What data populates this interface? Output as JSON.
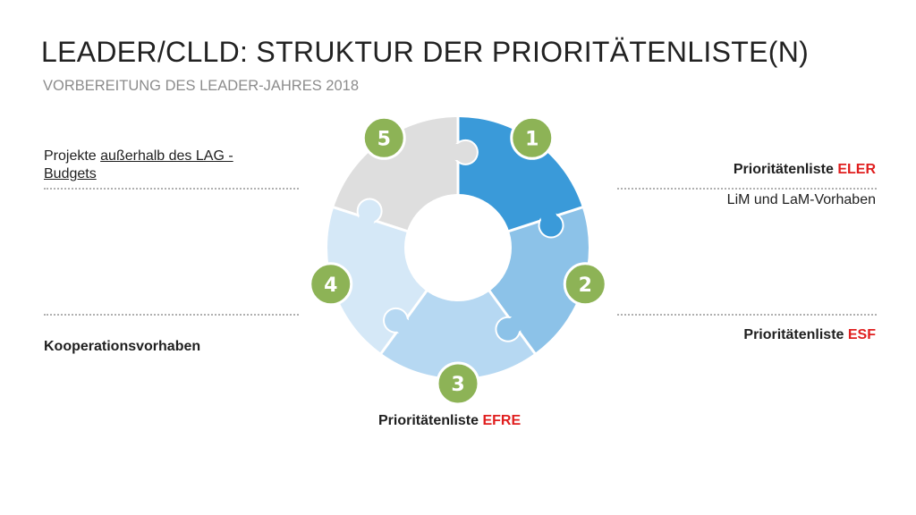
{
  "header": {
    "title": "LEADER/CLLD: STRUKTUR DER PRIORITÄTENLISTE(N)",
    "subtitle": "VORBEREITUNG DES LEADER-JAHRES 2018"
  },
  "labels": {
    "p5_line1_prefix": "Projekte ",
    "p5_line1_link": "außerhalb des LAG -",
    "p5_line2": "Budgets",
    "p1_prefix": "Prioritätenliste ",
    "p1_accent": "ELER",
    "p1_note": "LiM und LaM-Vorhaben",
    "p2_prefix": "Prioritätenliste ",
    "p2_accent": "ESF",
    "p3_prefix": "Prioritätenliste ",
    "p3_accent": "EFRE",
    "p4": "Kooperationsvorhaben"
  },
  "puzzle": {
    "pieces": [
      {
        "number": "1",
        "color": "#3a9ad9"
      },
      {
        "number": "2",
        "color": "#8cc2e8"
      },
      {
        "number": "3",
        "color": "#b6d8f2"
      },
      {
        "number": "4",
        "color": "#d5e8f7"
      },
      {
        "number": "5",
        "color": "#dedede"
      }
    ],
    "badge_color": "#8db356",
    "accent_color": "#e01e1e"
  }
}
